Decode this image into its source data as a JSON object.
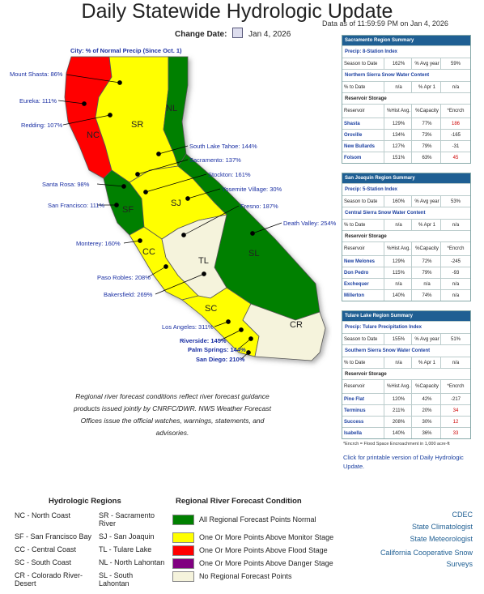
{
  "header": {
    "title": "Daily Statewide Hydrologic Update",
    "as_of": "Data as of 11:59:59 PM on Jan 4, 2026",
    "change_date_label": "Change Date:",
    "change_date_value": "Jan 4, 2026"
  },
  "map": {
    "header": "City: % of Normal Precip (Since Oct. 1)",
    "regions": [
      "NL",
      "SR",
      "NC",
      "SF",
      "SJ",
      "CC",
      "TL",
      "SL",
      "SC",
      "CR"
    ],
    "cities": [
      "Mount Shasta: 86%",
      "Eureka: 111%",
      "Redding: 107%",
      "South Lake Tahoe: 144%",
      "Sacramento: 137%",
      "Santa Rosa: 98%",
      "Stockton: 161%",
      "San Francisco: 111%",
      "Yosemite Village: 30%",
      "Fresno: 187%",
      "Death Valley: 254%",
      "Monterey: 160%",
      "Paso Robles: 208%",
      "Bakersfield: 269%",
      "Los Angeles: 311%",
      "Riverside: 145%",
      "Palm Springs: 144%",
      "San Diego: 210%"
    ],
    "caption": "Regional river forecast conditions reflect river forecast guidance products issued jointly by CNRFC/DWR. NWS Weather Forecast Offices issue the official watches, warnings, statements, and advisories."
  },
  "colors": {
    "normal": "#008000",
    "monitor": "#ffff00",
    "flood": "#ff0000",
    "danger": "#800080",
    "none": "#f5f3dc",
    "table_header": "#1f5f93"
  },
  "panels": [
    {
      "title": "Sacramento Region Summary",
      "precip_index": "Precip: 8-Station Index",
      "season_label": "Season to Date",
      "season_pct": "162%",
      "avg_label": "% Avg year",
      "avg_pct": "59%",
      "snow_title": "Northern Sierra Snow Water Content",
      "snow_to_date_label": "% to Date",
      "snow_to_date": "n/a",
      "snow_apr_label": "% Apr 1",
      "snow_apr": "n/a",
      "storage_title": "Reservoir Storage",
      "res_cols": [
        "Reservoir",
        "%Hist Avg.",
        "%Capacity",
        "*Encrch"
      ],
      "reservoirs": [
        [
          "Shasta",
          "129%",
          "77%",
          "186"
        ],
        [
          "Oroville",
          "134%",
          "73%",
          "-165"
        ],
        [
          "New Bullards",
          "127%",
          "79%",
          "-31"
        ],
        [
          "Folsom",
          "151%",
          "63%",
          "45"
        ]
      ]
    },
    {
      "title": "San Joaquin Region Summary",
      "precip_index": "Precip: 5-Station Index",
      "season_label": "Season to Date",
      "season_pct": "160%",
      "avg_label": "% Avg year",
      "avg_pct": "53%",
      "snow_title": "Central Sierra Snow Water Content",
      "snow_to_date_label": "% to Date",
      "snow_to_date": "n/a",
      "snow_apr_label": "% Apr 1",
      "snow_apr": "n/a",
      "storage_title": "Reservoir Storage",
      "res_cols": [
        "Reservoir",
        "%Hist Avg.",
        "%Capacity",
        "*Encrch"
      ],
      "reservoirs": [
        [
          "New Melones",
          "129%",
          "72%",
          "-245"
        ],
        [
          "Don Pedro",
          "115%",
          "79%",
          "-93"
        ],
        [
          "Exchequer",
          "n/a",
          "n/a",
          "n/a"
        ],
        [
          "Millerton",
          "140%",
          "74%",
          "n/a"
        ]
      ]
    },
    {
      "title": "Tulare Lake Region Summary",
      "precip_index": "Precip: Tulare Precipitation Index",
      "season_label": "Season to Date",
      "season_pct": "155%",
      "avg_label": "% Avg year",
      "avg_pct": "51%",
      "snow_title": "Southern Sierra Snow Water Content",
      "snow_to_date_label": "% to Date",
      "snow_to_date": "n/a",
      "snow_apr_label": "% Apr 1",
      "snow_apr": "n/a",
      "storage_title": "Reservoir Storage",
      "res_cols": [
        "Reservoir",
        "%Hist Avg.",
        "%Capacity",
        "*Encrch"
      ],
      "reservoirs": [
        [
          "Pine Flat",
          "120%",
          "42%",
          "-217"
        ],
        [
          "Terminus",
          "211%",
          "20%",
          "34"
        ],
        [
          "Success",
          "208%",
          "30%",
          "12"
        ],
        [
          "Isabella",
          "140%",
          "36%",
          "33"
        ]
      ]
    }
  ],
  "encroach_note": "*Encrch = Flood Space Encroachment in 1,000 acre-ft",
  "print_link": "Click for printable version of Daily Hydrologic Update.",
  "legend": {
    "hydro_title": "Hydrologic Regions",
    "hydro_regions": [
      "NC - North Coast",
      "SR - Sacramento River",
      "SF - San Francisco Bay",
      "SJ - San Joaquin",
      "CC - Central Coast",
      "TL - Tulare Lake",
      "SC - South Coast",
      "NL - North Lahontan",
      "CR - Colorado River-Desert",
      "SL - South Lahontan"
    ],
    "forecast_title": "Regional River Forecast Condition",
    "conditions": [
      "All Regional Forecast Points Normal",
      "One Or More Points Above Monitor Stage",
      "One Or More Points Above Flood Stage",
      "One Or More Points Above Danger Stage",
      "No Regional Forecast Points"
    ]
  },
  "links": [
    "CDEC",
    "State Climatologist",
    "State Meteorologist",
    "California Cooperative Snow Surveys"
  ]
}
